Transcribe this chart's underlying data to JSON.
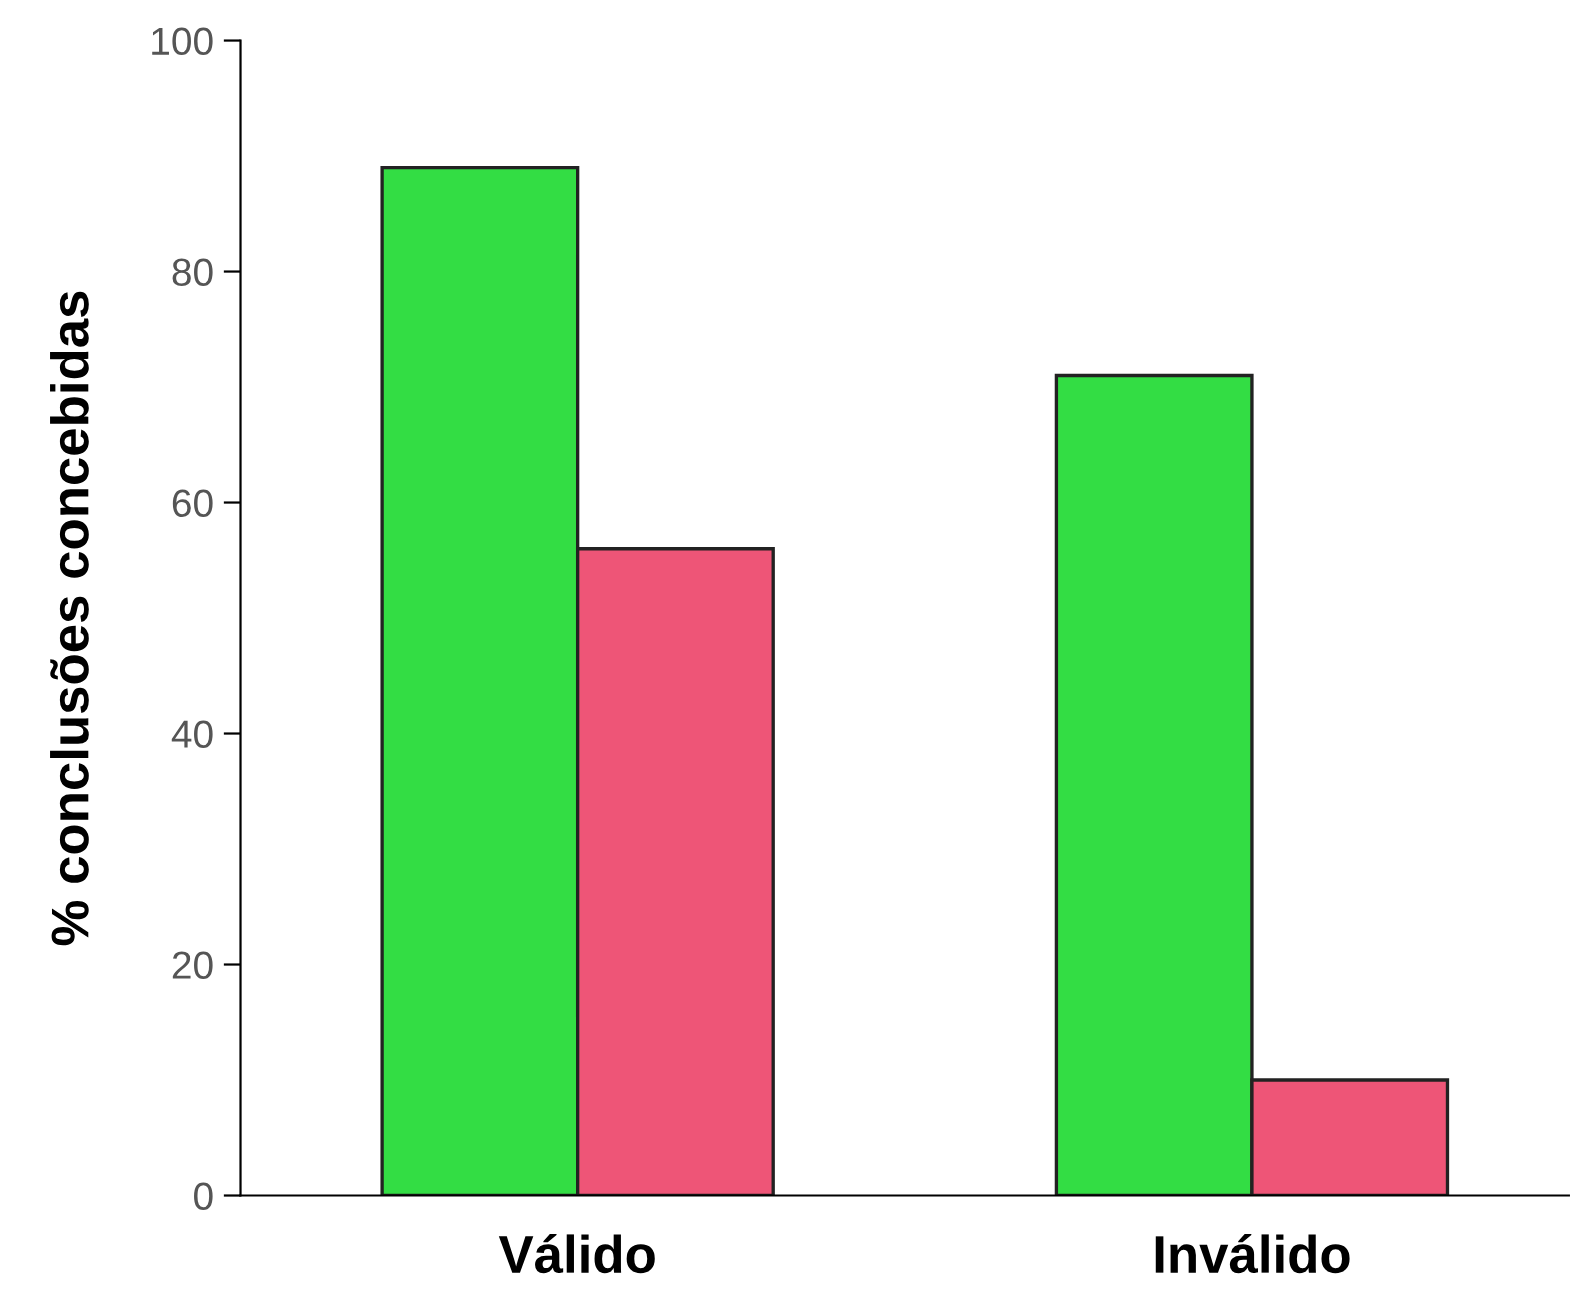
{
  "chart_data": {
    "type": "bar",
    "ylabel": "% conclusões concebidas",
    "categories": [
      "Válido",
      "Inválido"
    ],
    "series": [
      {
        "color": "#33dd44",
        "values": [
          89,
          71
        ]
      },
      {
        "color": "#ee5577",
        "values": [
          56,
          10
        ]
      }
    ],
    "ylim": [
      0,
      100
    ],
    "yticks": [
      0,
      20,
      40,
      60,
      80,
      100
    ],
    "grid": false,
    "legend": false
  }
}
